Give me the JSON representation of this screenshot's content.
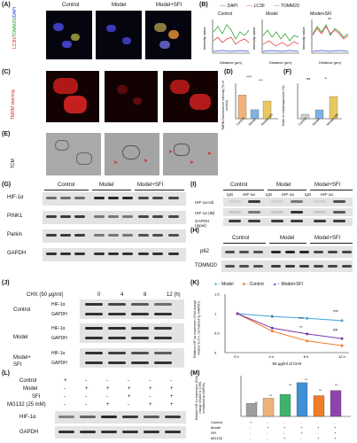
{
  "panels": [
    "(A)",
    "(B)",
    "(C)",
    "(D)",
    "(E)",
    "(F)",
    "(G)",
    "(H)",
    "(I)",
    "(J)",
    "(K)",
    "(L)",
    "(M)"
  ],
  "groups": {
    "control": "Control",
    "model": "Model",
    "model_sfi": "Model+SFI",
    "model_sfi_a": "Model+",
    "model_sfi_b": "SFI"
  },
  "a": {
    "ylabel_red": "LC3II/",
    "ylabel_green": "TOMM20",
    "ylabel_blue": "/DAPI"
  },
  "b": {
    "legend": [
      "DAPI",
      "LC3II",
      "TOMM20"
    ],
    "ylabel": "Intensity value",
    "xlabel": "Distance (μm)",
    "ticks_x": [
      "0",
      "5",
      "10",
      "15",
      "20"
    ],
    "sig": "**"
  },
  "c": {
    "ylabel": "TMRM staining"
  },
  "d": {
    "ylabel": "TMRM fluorescence intensity (% of control)",
    "sig": [
      "****",
      "***"
    ],
    "cats": [
      "Control",
      "Model",
      "Model+SFI"
    ],
    "values": [
      100,
      38,
      75
    ],
    "ylim": [
      0,
      150
    ]
  },
  "e": {
    "ylabel": "TCM"
  },
  "f": {
    "ylabel": "Ratio of mitophagosome (%)",
    "sig": [
      "ns",
      "**"
    ],
    "cats": [
      "Control",
      "Model",
      "Model+SFI"
    ],
    "values": [
      5,
      10,
      25
    ],
    "ylim": [
      0,
      40
    ]
  },
  "g": {
    "rows": [
      "HIF-1α",
      "PINK1",
      "Parkin",
      "GAPDH"
    ]
  },
  "h": {
    "rows": [
      "p62",
      "TOMM20"
    ]
  },
  "i": {
    "cols": [
      "IgG",
      "HIF-1α",
      "IgG",
      "HIF-1α",
      "IgG",
      "HIF-1α"
    ],
    "rows": [
      "HIF-1α-Ub",
      "HIF-1α (IB)",
      "GAPDH",
      "(Input)"
    ]
  },
  "j": {
    "title": "CHX (50 μg/ml)",
    "times": [
      "0",
      "4",
      "8",
      "12 (h)"
    ],
    "rows": [
      "HIF-1α",
      "GAPDH"
    ]
  },
  "k": {
    "legend": [
      "Model",
      "Control",
      "Model+SFI"
    ],
    "ylabel": "Relative HIF-1α expression (Fold change relative to 0 h, normalized by GAPDH)",
    "xlabel": "50 μg/ml of CHX",
    "sig": [
      "***",
      "*",
      "***",
      "**",
      "##"
    ],
    "chart_data": {
      "type": "line",
      "x": [
        "0 h",
        "4 h",
        "8 h",
        "12 h"
      ],
      "ylim": [
        0,
        1.2
      ],
      "yticks": [
        "0",
        "0.5",
        "1",
        "1.5"
      ],
      "series": [
        {
          "name": "Model",
          "color": "#3fa3d6",
          "values": [
            1.0,
            0.93,
            0.88,
            0.82
          ]
        },
        {
          "name": "Control",
          "color": "#f07b2a",
          "values": [
            1.0,
            0.55,
            0.3,
            0.18
          ]
        },
        {
          "name": "Model+SFI",
          "color": "#7a3aa6",
          "values": [
            1.0,
            0.63,
            0.48,
            0.36
          ]
        }
      ]
    }
  },
  "l": {
    "rows": [
      "Control",
      "Model",
      "SFI",
      "MG132 (25 mM)"
    ],
    "marks": [
      [
        "+",
        "-",
        "-",
        "-",
        "-",
        "-"
      ],
      [
        "-",
        "+",
        "+",
        "+",
        "+",
        "+"
      ],
      [
        "-",
        "-",
        "-",
        "+",
        "-",
        "+"
      ],
      [
        "-",
        "-",
        "+",
        "-",
        "+",
        "+"
      ]
    ],
    "blots": [
      "HIF-1α",
      "GAPDH"
    ]
  },
  "m": {
    "ylabel": "Relative HIF-1α expression (Fold change relative to CTRL normalized by GAPDH)",
    "rows": [
      "Control",
      "Model",
      "SFI",
      "MG132"
    ],
    "sig": [
      "**",
      "**",
      "**",
      "**",
      "**",
      "**"
    ],
    "chart_data": {
      "type": "bar",
      "categories": [
        "1",
        "2",
        "3",
        "4",
        "5",
        "6"
      ],
      "values": [
        1.0,
        1.4,
        1.7,
        2.6,
        1.6,
        2.0
      ],
      "colors": [
        "#9e9e9e",
        "#f0b27a",
        "#3fb26c",
        "#3f8fd6",
        "#f07b2a",
        "#8e44ad"
      ],
      "ylim": [
        0,
        3
      ]
    }
  }
}
